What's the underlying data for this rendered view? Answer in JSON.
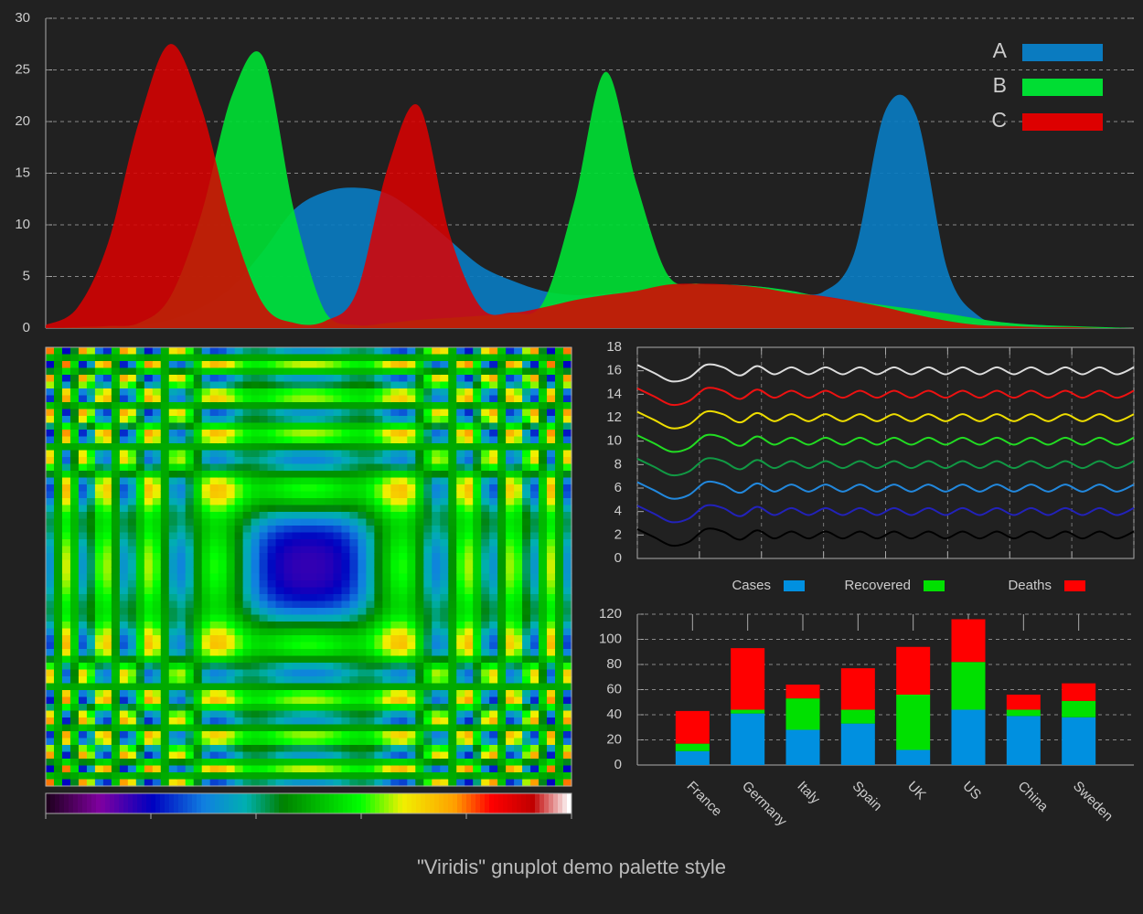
{
  "title": "\"Viridis\" gnuplot demo palette style",
  "chart_data": [
    {
      "type": "area",
      "ylim": [
        0,
        30
      ],
      "yticks": [
        0,
        5,
        10,
        15,
        20,
        25,
        30
      ],
      "grid": true,
      "legend": "top-right",
      "series": [
        {
          "name": "A",
          "color": "#0a7bc0",
          "values": [
            0,
            0,
            0.1,
            0.3,
            0.8,
            2,
            4,
            7.5,
            11.5,
            13.2,
            13.6,
            13,
            11,
            8.5,
            6,
            4.6,
            3.6,
            3.2,
            3.3,
            3.6,
            3.9,
            4.1,
            4.2,
            4,
            3.6,
            3.5,
            7.2,
            21,
            20.6,
            5.7,
            1.2,
            0.5,
            0.3,
            0.1,
            0,
            0
          ]
        },
        {
          "name": "B",
          "color": "#00dd33",
          "values": [
            0,
            0.1,
            0.2,
            0.5,
            3,
            11,
            22.6,
            26.2,
            11.2,
            1.5,
            0.3,
            0.5,
            0.8,
            1,
            1.2,
            1.4,
            2.5,
            12.2,
            24.8,
            14,
            5.2,
            4.3,
            4.2,
            4,
            3.6,
            3,
            2.6,
            2.2,
            1.8,
            1.4,
            0.9,
            0.5,
            0.3,
            0.2,
            0.1,
            0
          ]
        },
        {
          "name": "C",
          "color": "#dd0000",
          "values": [
            0.3,
            1.9,
            8.2,
            20,
            27.5,
            21.4,
            10,
            2.3,
            0.5,
            0.7,
            3.5,
            15.5,
            21.5,
            9,
            2,
            1.5,
            2,
            2.7,
            3.2,
            3.6,
            4.2,
            4.3,
            4.2,
            3.9,
            3.4,
            3.1,
            2.6,
            2,
            1.3,
            0.7,
            0.3,
            0.2,
            0.1,
            0.1,
            0,
            0
          ]
        }
      ]
    },
    {
      "type": "line",
      "ylim": [
        0,
        18
      ],
      "yticks": [
        0,
        2,
        4,
        6,
        8,
        10,
        12,
        14,
        16,
        18
      ],
      "series": [
        {
          "color": "#dddddd",
          "values": [
            16.5,
            15.8,
            15.1,
            15.4,
            16.5,
            16.3,
            15.6,
            16.4,
            15.7,
            16.3,
            15.7,
            16.3,
            15.7,
            16.3,
            15.7,
            16.3,
            15.7,
            16.3,
            15.7,
            16.3,
            15.7,
            16.3,
            15.7,
            16.3,
            15.7,
            16.3,
            15.7,
            16.3,
            15.7,
            16.3
          ]
        },
        {
          "color": "#ee1111",
          "values": [
            14.5,
            13.8,
            13.1,
            13.4,
            14.5,
            14.3,
            13.6,
            14.4,
            13.7,
            14.3,
            13.7,
            14.3,
            13.7,
            14.3,
            13.7,
            14.3,
            13.7,
            14.3,
            13.7,
            14.3,
            13.7,
            14.3,
            13.7,
            14.3,
            13.7,
            14.3,
            13.7,
            14.3,
            13.7,
            14.3
          ]
        },
        {
          "color": "#eedd00",
          "values": [
            12.5,
            11.8,
            11.1,
            11.4,
            12.5,
            12.3,
            11.6,
            12.4,
            11.7,
            12.3,
            11.7,
            12.3,
            11.7,
            12.3,
            11.7,
            12.3,
            11.7,
            12.3,
            11.7,
            12.3,
            11.7,
            12.3,
            11.7,
            12.3,
            11.7,
            12.3,
            11.7,
            12.3,
            11.7,
            12.3
          ]
        },
        {
          "color": "#22dd22",
          "values": [
            10.5,
            9.8,
            9.1,
            9.4,
            10.5,
            10.3,
            9.6,
            10.4,
            9.7,
            10.3,
            9.7,
            10.3,
            9.7,
            10.3,
            9.7,
            10.3,
            9.7,
            10.3,
            9.7,
            10.3,
            9.7,
            10.3,
            9.7,
            10.3,
            9.7,
            10.3,
            9.7,
            10.3,
            9.7,
            10.3
          ]
        },
        {
          "color": "#119944",
          "values": [
            8.5,
            7.8,
            7.1,
            7.4,
            8.5,
            8.3,
            7.6,
            8.4,
            7.7,
            8.3,
            7.7,
            8.3,
            7.7,
            8.3,
            7.7,
            8.3,
            7.7,
            8.3,
            7.7,
            8.3,
            7.7,
            8.3,
            7.7,
            8.3,
            7.7,
            8.3,
            7.7,
            8.3,
            7.7,
            8.3
          ]
        },
        {
          "color": "#2288dd",
          "values": [
            6.5,
            5.8,
            5.1,
            5.4,
            6.5,
            6.3,
            5.6,
            6.4,
            5.7,
            6.3,
            5.7,
            6.3,
            5.7,
            6.3,
            5.7,
            6.3,
            5.7,
            6.3,
            5.7,
            6.3,
            5.7,
            6.3,
            5.7,
            6.3,
            5.7,
            6.3,
            5.7,
            6.3,
            5.7,
            6.3
          ]
        },
        {
          "color": "#2222bb",
          "values": [
            4.5,
            3.8,
            3.1,
            3.4,
            4.5,
            4.3,
            3.6,
            4.4,
            3.7,
            4.3,
            3.7,
            4.3,
            3.7,
            4.3,
            3.7,
            4.3,
            3.7,
            4.3,
            3.7,
            4.3,
            3.7,
            4.3,
            3.7,
            4.3,
            3.7,
            4.3,
            3.7,
            4.3,
            3.7,
            4.3
          ]
        },
        {
          "color": "#000000",
          "values": [
            2.5,
            1.8,
            1.1,
            1.4,
            2.5,
            2.3,
            1.6,
            2.4,
            1.7,
            2.3,
            1.7,
            2.3,
            1.7,
            2.3,
            1.7,
            2.3,
            1.7,
            2.3,
            1.7,
            2.3,
            1.7,
            2.3,
            1.7,
            2.3,
            1.7,
            2.3,
            1.7,
            2.3,
            1.7,
            2.3
          ]
        }
      ]
    },
    {
      "type": "bar",
      "stacked": true,
      "ylim": [
        0,
        120
      ],
      "yticks": [
        0,
        20,
        40,
        60,
        80,
        100,
        120
      ],
      "grid": true,
      "legend": "top",
      "categories": [
        "France",
        "Germany",
        "Italy",
        "Spain",
        "UK",
        "US",
        "China",
        "Sweden"
      ],
      "series": [
        {
          "name": "Cases",
          "color": "#0090e0",
          "values": [
            11,
            41,
            28,
            33,
            12,
            44,
            39,
            38
          ]
        },
        {
          "name": "Recovered",
          "color": "#00e000",
          "values": [
            6,
            3,
            25,
            11,
            44,
            38,
            5,
            13
          ]
        },
        {
          "name": "Deaths",
          "color": "#ff0000",
          "values": [
            26,
            49,
            11,
            33,
            38,
            34,
            12,
            14
          ]
        }
      ]
    }
  ]
}
